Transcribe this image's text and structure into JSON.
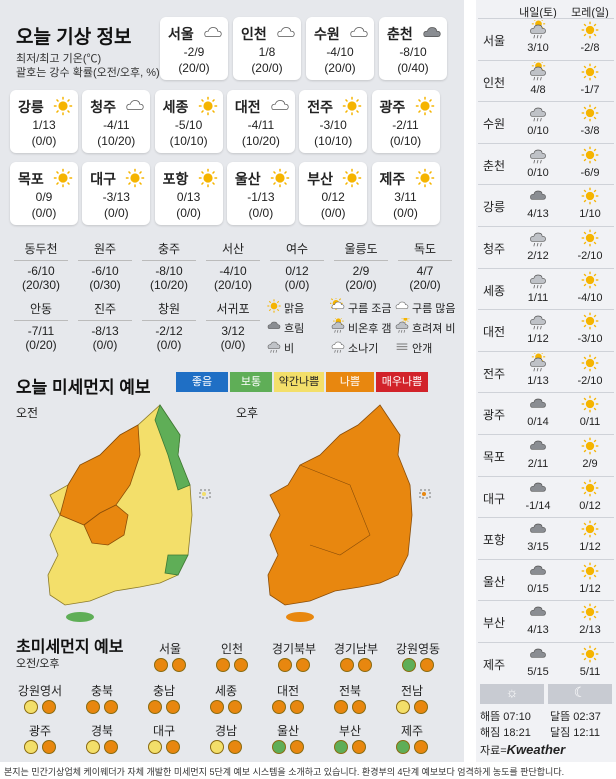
{
  "title": "오늘 기상 정보",
  "note1": "최저/최고 기온(℃)",
  "note2": "괄호는 강수 확률(오전/오후, %)",
  "cards": [
    {
      "name": "서울",
      "temp": "-2/9",
      "prob": "(20/0)",
      "icon": "cloud"
    },
    {
      "name": "인천",
      "temp": "1/8",
      "prob": "(20/0)",
      "icon": "cloud"
    },
    {
      "name": "수원",
      "temp": "-4/10",
      "prob": "(20/0)",
      "icon": "cloud"
    },
    {
      "name": "춘천",
      "temp": "-8/10",
      "prob": "(0/40)",
      "icon": "cloud-dark"
    },
    {
      "name": "강릉",
      "temp": "1/13",
      "prob": "(0/0)",
      "icon": "sun"
    },
    {
      "name": "청주",
      "temp": "-4/11",
      "prob": "(10/20)",
      "icon": "cloud"
    },
    {
      "name": "세종",
      "temp": "-5/10",
      "prob": "(10/10)",
      "icon": "sun"
    },
    {
      "name": "대전",
      "temp": "-4/11",
      "prob": "(10/20)",
      "icon": "cloud"
    },
    {
      "name": "전주",
      "temp": "-3/10",
      "prob": "(10/10)",
      "icon": "sun"
    },
    {
      "name": "광주",
      "temp": "-2/11",
      "prob": "(0/10)",
      "icon": "sun"
    },
    {
      "name": "목포",
      "temp": "0/9",
      "prob": "(0/0)",
      "icon": "sun"
    },
    {
      "name": "대구",
      "temp": "-3/13",
      "prob": "(0/0)",
      "icon": "sun"
    },
    {
      "name": "포항",
      "temp": "0/13",
      "prob": "(0/0)",
      "icon": "sun"
    },
    {
      "name": "울산",
      "temp": "-1/13",
      "prob": "(0/0)",
      "icon": "sun"
    },
    {
      "name": "부산",
      "temp": "0/12",
      "prob": "(0/0)",
      "icon": "sun"
    },
    {
      "name": "제주",
      "temp": "3/11",
      "prob": "(0/0)",
      "icon": "sun"
    }
  ],
  "small": [
    {
      "name": "동두천",
      "temp": "-6/10",
      "prob": "(20/30)"
    },
    {
      "name": "원주",
      "temp": "-6/10",
      "prob": "(0/30)"
    },
    {
      "name": "충주",
      "temp": "-8/10",
      "prob": "(10/20)"
    },
    {
      "name": "서산",
      "temp": "-4/10",
      "prob": "(20/10)"
    },
    {
      "name": "여수",
      "temp": "0/12",
      "prob": "(0/0)"
    },
    {
      "name": "울릉도",
      "temp": "2/9",
      "prob": "(20/0)"
    },
    {
      "name": "독도",
      "temp": "4/7",
      "prob": "(20/0)"
    },
    {
      "name": "안동",
      "temp": "-7/11",
      "prob": "(0/20)"
    },
    {
      "name": "진주",
      "temp": "-8/13",
      "prob": "(0/0)"
    },
    {
      "name": "창원",
      "temp": "-2/12",
      "prob": "(0/0)"
    },
    {
      "name": "서귀포",
      "temp": "3/12",
      "prob": "(0/0)"
    }
  ],
  "legend": [
    {
      "icon": "sun",
      "label": "맑음"
    },
    {
      "icon": "sun-cloud",
      "label": "구름 조금"
    },
    {
      "icon": "cloud",
      "label": "구름 많음"
    },
    {
      "icon": "cloud-dark",
      "label": "흐림"
    },
    {
      "icon": "sun-rain",
      "label": "비온후 갬"
    },
    {
      "icon": "rain-sun",
      "label": "흐려져 비"
    },
    {
      "icon": "rain",
      "label": "비"
    },
    {
      "icon": "shower",
      "label": "소나기"
    },
    {
      "icon": "fog",
      "label": "안개"
    }
  ],
  "pm_title": "오늘 미세먼지 예보",
  "pm_levels": [
    {
      "label": "좋음",
      "color": "#1f6fc5"
    },
    {
      "label": "보통",
      "color": "#5fae57"
    },
    {
      "label": "약간나쁨",
      "color": "#f3df6a"
    },
    {
      "label": "나쁨",
      "color": "#e8870f"
    },
    {
      "label": "매우나쁨",
      "color": "#d2232a"
    }
  ],
  "am": "오전",
  "pm": "오후",
  "upm_title": "초미세먼지 예보",
  "upm_sub": "오전/오후",
  "upm": [
    {
      "name": "서울",
      "a": "orange",
      "b": "orange"
    },
    {
      "name": "인천",
      "a": "orange",
      "b": "orange"
    },
    {
      "name": "경기북부",
      "a": "orange",
      "b": "orange"
    },
    {
      "name": "경기남부",
      "a": "orange",
      "b": "orange"
    },
    {
      "name": "강원영동",
      "a": "green",
      "b": "orange"
    },
    {
      "name": "강원영서",
      "a": "yellow",
      "b": "orange"
    },
    {
      "name": "충북",
      "a": "orange",
      "b": "orange"
    },
    {
      "name": "충남",
      "a": "orange",
      "b": "orange"
    },
    {
      "name": "세종",
      "a": "orange",
      "b": "orange"
    },
    {
      "name": "대전",
      "a": "orange",
      "b": "orange"
    },
    {
      "name": "전북",
      "a": "orange",
      "b": "orange"
    },
    {
      "name": "전남",
      "a": "yellow",
      "b": "orange"
    },
    {
      "name": "광주",
      "a": "yellow",
      "b": "orange"
    },
    {
      "name": "경북",
      "a": "yellow",
      "b": "orange"
    },
    {
      "name": "대구",
      "a": "yellow",
      "b": "orange"
    },
    {
      "name": "경남",
      "a": "yellow",
      "b": "orange"
    },
    {
      "name": "울산",
      "a": "green",
      "b": "orange"
    },
    {
      "name": "부산",
      "a": "green",
      "b": "orange"
    },
    {
      "name": "제주",
      "a": "green",
      "b": "orange"
    }
  ],
  "forecast_head": {
    "d1": "내일(토)",
    "d2": "모레(일)"
  },
  "forecast": [
    {
      "name": "서울",
      "i1": "sun-rain",
      "v1": "3/10",
      "i2": "sun",
      "v2": "-2/8"
    },
    {
      "name": "인천",
      "i1": "sun-rain",
      "v1": "4/8",
      "i2": "sun",
      "v2": "-1/7"
    },
    {
      "name": "수원",
      "i1": "rain",
      "v1": "0/10",
      "i2": "sun",
      "v2": "-3/8"
    },
    {
      "name": "춘천",
      "i1": "rain",
      "v1": "0/10",
      "i2": "sun",
      "v2": "-6/9"
    },
    {
      "name": "강릉",
      "i1": "cloud-dark",
      "v1": "4/13",
      "i2": "sun",
      "v2": "1/10"
    },
    {
      "name": "청주",
      "i1": "rain",
      "v1": "2/12",
      "i2": "sun",
      "v2": "-2/10"
    },
    {
      "name": "세종",
      "i1": "rain",
      "v1": "1/11",
      "i2": "sun",
      "v2": "-4/10"
    },
    {
      "name": "대전",
      "i1": "rain",
      "v1": "1/12",
      "i2": "sun",
      "v2": "-3/10"
    },
    {
      "name": "전주",
      "i1": "sun-rain",
      "v1": "1/13",
      "i2": "sun",
      "v2": "-2/10"
    },
    {
      "name": "광주",
      "i1": "cloud-dark",
      "v1": "0/14",
      "i2": "sun",
      "v2": "0/11"
    },
    {
      "name": "목포",
      "i1": "cloud-dark",
      "v1": "2/11",
      "i2": "sun",
      "v2": "2/9"
    },
    {
      "name": "대구",
      "i1": "cloud-dark",
      "v1": "-1/14",
      "i2": "sun",
      "v2": "0/12"
    },
    {
      "name": "포항",
      "i1": "cloud-dark",
      "v1": "3/15",
      "i2": "sun",
      "v2": "1/12"
    },
    {
      "name": "울산",
      "i1": "cloud-dark",
      "v1": "0/15",
      "i2": "sun",
      "v2": "1/12"
    },
    {
      "name": "부산",
      "i1": "cloud-dark",
      "v1": "4/13",
      "i2": "sun",
      "v2": "2/13"
    },
    {
      "name": "제주",
      "i1": "cloud-dark",
      "v1": "5/15",
      "i2": "sun",
      "v2": "5/11"
    }
  ],
  "sun_rise": "해뜸 07:10",
  "sun_set": "해짐 18:21",
  "moon_rise": "달뜸 02:37",
  "moon_set": "달짐 12:11",
  "source_label": "자료=",
  "source_brand": "Kweather",
  "footer": "본지는 민간기상업체 케이웨더가 자체 개발한 미세먼지 5단계 예보 시스템을 소개하고 있습니다. 환경부의 4단계 예보보다 엄격하게 농도를 판단합니다."
}
